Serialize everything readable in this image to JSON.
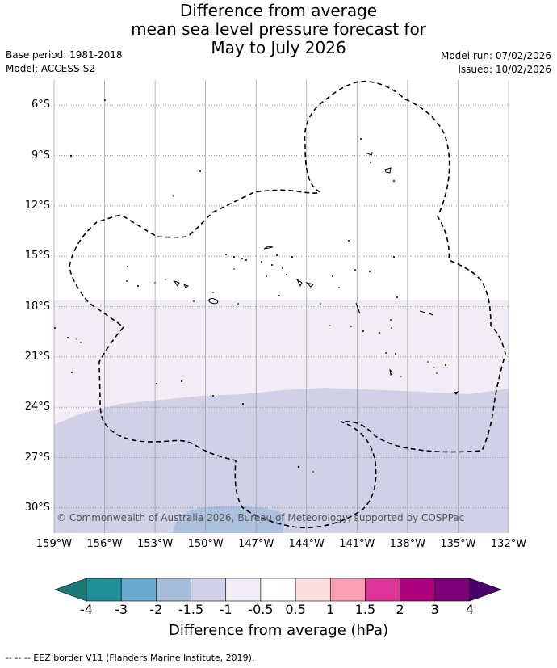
{
  "title": {
    "line1": "Difference from average",
    "line2": "mean sea level pressure forecast for",
    "line3": "May to July 2026"
  },
  "meta": {
    "base_period": "Base period: 1981-2018",
    "model": "Model: ACCESS-S2",
    "model_run": "Model run: 07/02/2026",
    "issued": "Issued: 10/02/2026"
  },
  "map": {
    "lat_labels": [
      "6°S",
      "9°S",
      "12°S",
      "15°S",
      "18°S",
      "21°S",
      "24°S",
      "27°S",
      "30°S"
    ],
    "lon_labels": [
      "159°W",
      "156°W",
      "153°W",
      "150°W",
      "147°W",
      "144°W",
      "141°W",
      "138°W",
      "135°W",
      "132°W"
    ],
    "lat_values": [
      -6,
      -9,
      -12,
      -15,
      -18,
      -21,
      -24,
      -27,
      -30
    ],
    "lon_values": [
      -159,
      -156,
      -153,
      -150,
      -147,
      -144,
      -141,
      -138,
      -135,
      -132
    ],
    "extent": {
      "lon_min": -159,
      "lon_max": -132,
      "lat_max": -4.5,
      "lat_min": -31.5
    },
    "anomaly_regions": [
      {
        "range": "-1 to -0.5",
        "color": "#f2ecf5",
        "south_of_lat": -17.8
      },
      {
        "range": "-1.5 to -1",
        "color": "#d0d1e6",
        "south_of_lat": -23.5
      },
      {
        "range": "-2 to -1.5",
        "color": "#a6bddb",
        "area": "near 148°W, 30°S"
      }
    ],
    "credit": "© Commonwealth of Australia 2026, Bureau of Meteorology, supported by COSPPac"
  },
  "colorbar": {
    "colors": [
      "#1b7a77",
      "#1e9096",
      "#67a9cf",
      "#a6bddb",
      "#d0d1e6",
      "#f2ecf5",
      "#ffffff",
      "#fde0dd",
      "#fa9fb5",
      "#dd3497",
      "#ae017e",
      "#7a0177",
      "#49006a"
    ],
    "tick_labels": [
      "-4",
      "-3",
      "-2",
      "-1.5",
      "-1",
      "-0.5",
      "0.5",
      "1",
      "1.5",
      "2",
      "3",
      "4"
    ],
    "title": "Difference from average (hPa)"
  },
  "footer": {
    "legend": "-- -- -- EEZ border V11 (Flanders Marine Institute, 2019)."
  }
}
